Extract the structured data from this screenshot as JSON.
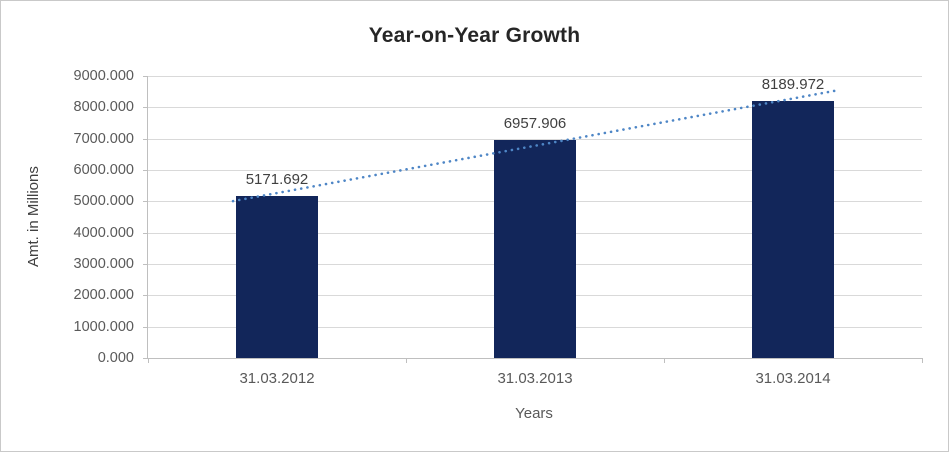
{
  "chart_data": {
    "type": "bar",
    "title": "Year-on-Year Growth",
    "categories": [
      "31.03.2012",
      "31.03.2013",
      "31.03.2014"
    ],
    "values": [
      5171.692,
      6957.906,
      8189.972
    ],
    "data_labels": [
      "5171.692",
      "6957.906",
      "8189.972"
    ],
    "xlabel": "Years",
    "ylabel": "Amt. in Millions",
    "ylim": [
      0,
      9000
    ],
    "ytick_interval": 1000,
    "ytick_labels": [
      "0.000",
      "1000.000",
      "2000.000",
      "3000.000",
      "4000.000",
      "5000.000",
      "6000.000",
      "7000.000",
      "8000.000",
      "9000.000"
    ],
    "grid": "horizontal",
    "legend": "none",
    "bar_color": "#12265a",
    "grid_color": "#d9d9d9",
    "axis_color": "#bfbfbf",
    "label_color": "#404040",
    "trendline": {
      "type": "linear",
      "style": "dotted",
      "color": "#4e86c6"
    }
  }
}
